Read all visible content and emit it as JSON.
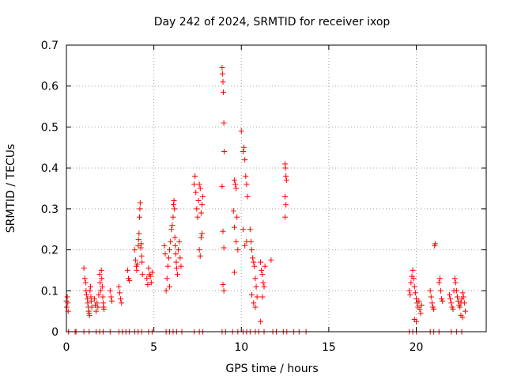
{
  "chart_data": {
    "type": "scatter",
    "title": "Day 242 of 2024, SRMTID for receiver ixop",
    "xlabel": "GPS time / hours",
    "ylabel": "SRMTID / TECUs",
    "xlim": [
      0,
      24
    ],
    "ylim": [
      0,
      0.7
    ],
    "x_ticks": [
      0,
      5,
      10,
      15,
      20
    ],
    "y_ticks": [
      0,
      0.1,
      0.2,
      0.3,
      0.4,
      0.5,
      0.6,
      0.7
    ],
    "x_tick_labels": [
      "0",
      "5",
      "10",
      "15",
      "20"
    ],
    "y_tick_labels": [
      "0",
      "0.1",
      "0.2",
      "0.3",
      "0.4",
      "0.5",
      "0.6",
      "0.7"
    ],
    "grid": true,
    "marker": "plus",
    "color": "#ff0000",
    "series": [
      {
        "name": "SRMTID",
        "points": [
          [
            0.0,
            0.075
          ],
          [
            0.02,
            0.06
          ],
          [
            0.05,
            0.085
          ],
          [
            0.08,
            0.07
          ],
          [
            0.1,
            0.05
          ],
          [
            0.12,
            0.0
          ],
          [
            0.5,
            0.0
          ],
          [
            0.55,
            0.0
          ],
          [
            1.0,
            0.155
          ],
          [
            1.05,
            0.13
          ],
          [
            1.1,
            0.12
          ],
          [
            1.12,
            0.1
          ],
          [
            1.15,
            0.09
          ],
          [
            1.2,
            0.08
          ],
          [
            1.22,
            0.07
          ],
          [
            1.25,
            0.06
          ],
          [
            1.27,
            0.05
          ],
          [
            1.3,
            0.045
          ],
          [
            1.32,
            0.04
          ],
          [
            1.35,
            0.1
          ],
          [
            1.38,
            0.11
          ],
          [
            1.4,
            0.085
          ],
          [
            1.42,
            0.075
          ],
          [
            1.45,
            0.06
          ],
          [
            1.0,
            0.0
          ],
          [
            1.3,
            0.0
          ],
          [
            1.6,
            0.08
          ],
          [
            1.65,
            0.065
          ],
          [
            1.7,
            0.05
          ],
          [
            1.75,
            0.07
          ],
          [
            1.8,
            0.06
          ],
          [
            1.85,
            0.09
          ],
          [
            1.9,
            0.14
          ],
          [
            1.92,
            0.12
          ],
          [
            1.95,
            0.1
          ],
          [
            2.0,
            0.15
          ],
          [
            2.02,
            0.13
          ],
          [
            2.05,
            0.11
          ],
          [
            2.08,
            0.085
          ],
          [
            2.1,
            0.07
          ],
          [
            2.12,
            0.06
          ],
          [
            2.15,
            0.055
          ],
          [
            1.7,
            0.0
          ],
          [
            1.9,
            0.0
          ],
          [
            2.1,
            0.0
          ],
          [
            2.5,
            0.1
          ],
          [
            2.55,
            0.085
          ],
          [
            2.6,
            0.075
          ],
          [
            2.5,
            0.0
          ],
          [
            3.0,
            0.11
          ],
          [
            3.05,
            0.095
          ],
          [
            3.1,
            0.08
          ],
          [
            3.15,
            0.07
          ],
          [
            3.0,
            0.0
          ],
          [
            3.2,
            0.0
          ],
          [
            3.5,
            0.15
          ],
          [
            3.55,
            0.13
          ],
          [
            3.6,
            0.125
          ],
          [
            3.4,
            0.0
          ],
          [
            3.6,
            0.0
          ],
          [
            3.9,
            0.2
          ],
          [
            3.95,
            0.175
          ],
          [
            4.0,
            0.16
          ],
          [
            4.02,
            0.15
          ],
          [
            4.05,
            0.165
          ],
          [
            4.1,
            0.21
          ],
          [
            4.12,
            0.225
          ],
          [
            4.15,
            0.24
          ],
          [
            4.18,
            0.28
          ],
          [
            4.2,
            0.3
          ],
          [
            4.22,
            0.315
          ],
          [
            4.25,
            0.205
          ],
          [
            4.28,
            0.215
          ],
          [
            4.3,
            0.185
          ],
          [
            4.32,
            0.17
          ],
          [
            4.35,
            0.14
          ],
          [
            3.9,
            0.0
          ],
          [
            4.1,
            0.0
          ],
          [
            4.3,
            0.0
          ],
          [
            4.6,
            0.13
          ],
          [
            4.65,
            0.115
          ],
          [
            4.7,
            0.155
          ],
          [
            4.75,
            0.14
          ],
          [
            4.8,
            0.135
          ],
          [
            4.85,
            0.12
          ],
          [
            4.9,
            0.145
          ],
          [
            4.7,
            0.0
          ],
          [
            4.9,
            0.0
          ],
          [
            5.7,
            0.1
          ],
          [
            5.75,
            0.13
          ],
          [
            5.8,
            0.16
          ],
          [
            5.85,
            0.18
          ],
          [
            5.9,
            0.2
          ],
          [
            5.95,
            0.22
          ],
          [
            6.0,
            0.25
          ],
          [
            6.05,
            0.26
          ],
          [
            6.1,
            0.28
          ],
          [
            6.12,
            0.31
          ],
          [
            6.15,
            0.32
          ],
          [
            6.18,
            0.3
          ],
          [
            6.2,
            0.23
          ],
          [
            6.22,
            0.21
          ],
          [
            6.25,
            0.19
          ],
          [
            6.28,
            0.17
          ],
          [
            6.3,
            0.155
          ],
          [
            6.35,
            0.14
          ],
          [
            6.4,
            0.2
          ],
          [
            6.45,
            0.22
          ],
          [
            6.5,
            0.18
          ],
          [
            6.55,
            0.16
          ],
          [
            5.6,
            0.21
          ],
          [
            5.65,
            0.19
          ],
          [
            5.9,
            0.11
          ],
          [
            5.7,
            0.0
          ],
          [
            5.9,
            0.0
          ],
          [
            6.1,
            0.0
          ],
          [
            6.3,
            0.0
          ],
          [
            6.6,
            0.0
          ],
          [
            7.3,
            0.36
          ],
          [
            7.35,
            0.38
          ],
          [
            7.4,
            0.34
          ],
          [
            7.45,
            0.3
          ],
          [
            7.5,
            0.28
          ],
          [
            7.55,
            0.32
          ],
          [
            7.6,
            0.36
          ],
          [
            7.65,
            0.35
          ],
          [
            7.7,
            0.29
          ],
          [
            7.75,
            0.31
          ],
          [
            7.8,
            0.33
          ],
          [
            7.6,
            0.2
          ],
          [
            7.65,
            0.185
          ],
          [
            7.7,
            0.23
          ],
          [
            7.75,
            0.24
          ],
          [
            7.3,
            0.0
          ],
          [
            7.6,
            0.0
          ],
          [
            7.8,
            0.0
          ],
          [
            8.9,
            0.645
          ],
          [
            8.92,
            0.63
          ],
          [
            8.95,
            0.61
          ],
          [
            8.97,
            0.585
          ],
          [
            9.0,
            0.51
          ],
          [
            9.02,
            0.44
          ],
          [
            8.9,
            0.355
          ],
          [
            8.95,
            0.245
          ],
          [
            9.0,
            0.205
          ],
          [
            8.95,
            0.115
          ],
          [
            9.0,
            0.1
          ],
          [
            8.9,
            0.0
          ],
          [
            9.1,
            0.0
          ],
          [
            9.6,
            0.37
          ],
          [
            9.65,
            0.36
          ],
          [
            9.7,
            0.35
          ],
          [
            9.55,
            0.295
          ],
          [
            9.75,
            0.28
          ],
          [
            9.6,
            0.255
          ],
          [
            9.7,
            0.22
          ],
          [
            9.8,
            0.2
          ],
          [
            9.6,
            0.145
          ],
          [
            9.5,
            0.0
          ],
          [
            9.8,
            0.0
          ],
          [
            10.0,
            0.49
          ],
          [
            10.1,
            0.44
          ],
          [
            10.15,
            0.45
          ],
          [
            10.2,
            0.42
          ],
          [
            10.25,
            0.38
          ],
          [
            10.3,
            0.36
          ],
          [
            10.35,
            0.33
          ],
          [
            10.1,
            0.25
          ],
          [
            10.2,
            0.21
          ],
          [
            10.3,
            0.22
          ],
          [
            10.1,
            0.0
          ],
          [
            10.3,
            0.0
          ],
          [
            10.5,
            0.25
          ],
          [
            10.55,
            0.22
          ],
          [
            10.6,
            0.2
          ],
          [
            10.65,
            0.18
          ],
          [
            10.7,
            0.17
          ],
          [
            10.75,
            0.16
          ],
          [
            10.8,
            0.13
          ],
          [
            10.85,
            0.11
          ],
          [
            10.6,
            0.09
          ],
          [
            10.7,
            0.07
          ],
          [
            10.8,
            0.06
          ],
          [
            10.9,
            0.085
          ],
          [
            10.5,
            0.0
          ],
          [
            10.8,
            0.0
          ],
          [
            11.1,
            0.17
          ],
          [
            11.15,
            0.15
          ],
          [
            11.2,
            0.14
          ],
          [
            11.25,
            0.12
          ],
          [
            11.3,
            0.11
          ],
          [
            11.35,
            0.16
          ],
          [
            11.2,
            0.085
          ],
          [
            11.1,
            0.025
          ],
          [
            11.0,
            0.0
          ],
          [
            11.3,
            0.0
          ],
          [
            11.7,
            0.175
          ],
          [
            11.8,
            0.0
          ],
          [
            12.0,
            0.0
          ],
          [
            12.5,
            0.41
          ],
          [
            12.52,
            0.4
          ],
          [
            12.55,
            0.38
          ],
          [
            12.58,
            0.37
          ],
          [
            12.5,
            0.33
          ],
          [
            12.55,
            0.31
          ],
          [
            12.5,
            0.28
          ],
          [
            12.4,
            0.0
          ],
          [
            12.6,
            0.0
          ],
          [
            13.0,
            0.0
          ],
          [
            13.3,
            0.0
          ],
          [
            13.7,
            0.0
          ],
          [
            19.6,
            0.1
          ],
          [
            19.65,
            0.09
          ],
          [
            19.7,
            0.12
          ],
          [
            19.75,
            0.135
          ],
          [
            19.8,
            0.15
          ],
          [
            19.85,
            0.13
          ],
          [
            19.9,
            0.11
          ],
          [
            19.95,
            0.095
          ],
          [
            20.0,
            0.08
          ],
          [
            20.05,
            0.07
          ],
          [
            20.1,
            0.06
          ],
          [
            20.15,
            0.075
          ],
          [
            20.2,
            0.055
          ],
          [
            20.25,
            0.045
          ],
          [
            20.3,
            0.065
          ],
          [
            19.9,
            0.03
          ],
          [
            20.0,
            0.025
          ],
          [
            19.6,
            0.0
          ],
          [
            19.8,
            0.0
          ],
          [
            20.0,
            0.0
          ],
          [
            20.8,
            0.1
          ],
          [
            20.85,
            0.085
          ],
          [
            20.9,
            0.07
          ],
          [
            20.95,
            0.06
          ],
          [
            21.0,
            0.055
          ],
          [
            21.05,
            0.21
          ],
          [
            21.08,
            0.215
          ],
          [
            20.8,
            0.0
          ],
          [
            21.0,
            0.0
          ],
          [
            21.3,
            0.12
          ],
          [
            21.35,
            0.13
          ],
          [
            21.4,
            0.1
          ],
          [
            21.45,
            0.08
          ],
          [
            21.5,
            0.075
          ],
          [
            21.3,
            0.0
          ],
          [
            21.9,
            0.09
          ],
          [
            21.95,
            0.08
          ],
          [
            22.0,
            0.07
          ],
          [
            22.05,
            0.06
          ],
          [
            22.1,
            0.055
          ],
          [
            22.15,
            0.1
          ],
          [
            22.2,
            0.13
          ],
          [
            22.25,
            0.12
          ],
          [
            22.3,
            0.1
          ],
          [
            22.35,
            0.085
          ],
          [
            22.4,
            0.075
          ],
          [
            22.45,
            0.065
          ],
          [
            22.5,
            0.06
          ],
          [
            22.55,
            0.07
          ],
          [
            22.6,
            0.08
          ],
          [
            22.65,
            0.095
          ],
          [
            22.7,
            0.085
          ],
          [
            22.75,
            0.07
          ],
          [
            22.8,
            0.05
          ],
          [
            22.55,
            0.04
          ],
          [
            22.65,
            0.035
          ],
          [
            22.0,
            0.0
          ],
          [
            22.3,
            0.0
          ],
          [
            22.6,
            0.0
          ]
        ]
      }
    ]
  }
}
